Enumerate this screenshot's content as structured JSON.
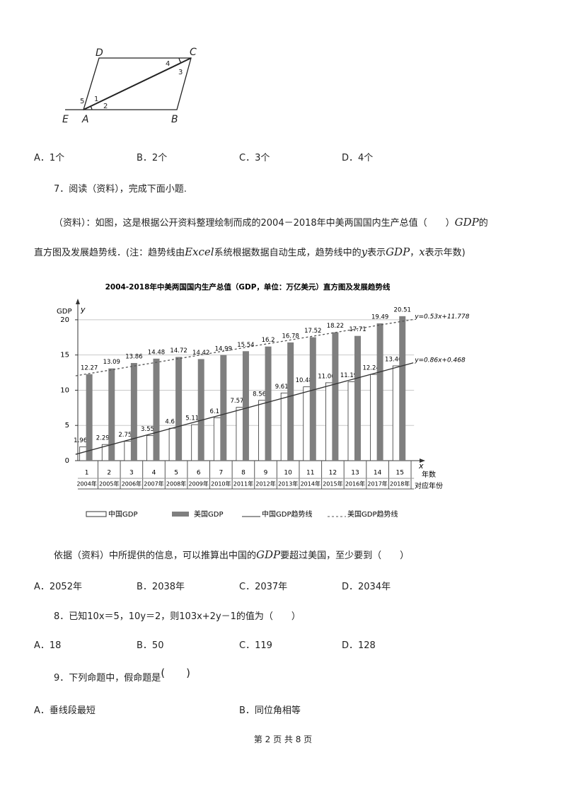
{
  "figure": {
    "labels": {
      "D": "D",
      "C": "C",
      "E": "E",
      "A": "A",
      "B": "B",
      "a1": "1",
      "a2": "2",
      "a3": "3",
      "a4": "4",
      "a5": "5"
    }
  },
  "q6_options": [
    "A．1个",
    "B．2个",
    "C．3个",
    "D．4个"
  ],
  "q7": {
    "stem": "7．阅读（资料），完成下面小题.",
    "material_line1": [
      "（资料）：如图，这是根据公开资料整理绘制而成的2004－2018年中美两国国内生产总值（　　）",
      "GDP",
      "的"
    ],
    "material_line2": [
      "直方图及发展趋势线．(注：趋势线由",
      "Excel",
      "系统根据数据自动生成，趋势线中的",
      "y",
      "表示",
      "GDP",
      "，",
      "x",
      "表示年数)"
    ],
    "question": [
      "依据（资料）中所提供的信息，可以推算出中国的",
      "GDP",
      "要超过美国，至少要到（　　）"
    ],
    "options": [
      "A．2052年",
      "B．2038年",
      "C．2037年",
      "D．2034年"
    ]
  },
  "q8": {
    "stem": "8．已知10x＝5，10y＝2，则103x+2y－1的值为（　　）",
    "options": [
      "A．18",
      "B．50",
      "C．119",
      "D．128"
    ]
  },
  "q9": {
    "stem": [
      "9．下列命题中，假命题是",
      "(　　)"
    ],
    "options": [
      "A．垂线段最短",
      "B．同位角相等"
    ]
  },
  "footer": "第 2 页 共 8 页",
  "chart_data": {
    "type": "bar",
    "title": "2004-2018年中美两国国内生产总值（GDP，单位：万亿美元）直方图及发展趋势线",
    "y_label": "GDP",
    "y_axis_symbol": "y",
    "x_axis_symbol": "x",
    "x_label": "年数",
    "x_label2": "对应年份",
    "x": [
      1,
      2,
      3,
      4,
      5,
      6,
      7,
      8,
      9,
      10,
      11,
      12,
      13,
      14,
      15
    ],
    "x_years": [
      "2004年",
      "2005年",
      "2006年",
      "2007年",
      "2008年",
      "2009年",
      "2010年",
      "2011年",
      "2012年",
      "2013年",
      "2014年",
      "2015年",
      "2016年",
      "2017年",
      "2018年"
    ],
    "xlim": [
      0.6,
      16.1
    ],
    "ylim": [
      0,
      22
    ],
    "yticks": [
      0,
      5,
      10,
      15,
      20
    ],
    "grid": true,
    "series": [
      {
        "name": "中国GDP",
        "color": "#ffffff",
        "values": [
          1.96,
          2.29,
          2.75,
          3.55,
          4.6,
          5.11,
          6.1,
          7.57,
          8.56,
          9.61,
          10.48,
          11.06,
          11.19,
          12.24,
          13.46
        ]
      },
      {
        "name": "美国GDP",
        "color": "#7f7f7f",
        "values": [
          12.27,
          13.09,
          13.86,
          14.48,
          14.72,
          14.42,
          14.99,
          15.54,
          16.2,
          16.78,
          17.52,
          18.22,
          17.71,
          19.49,
          20.51
        ]
      }
    ],
    "trendlines": [
      {
        "name": "中国GDP趋势线",
        "label": "y=0.86x+0.468",
        "slope": 0.86,
        "intercept": 0.468,
        "color": "#333333",
        "dashed": false
      },
      {
        "name": "美国GDP趋势线",
        "label": "y=0.53x+11.778",
        "slope": 0.53,
        "intercept": 11.778,
        "color": "#555555",
        "dashed": true
      }
    ]
  }
}
